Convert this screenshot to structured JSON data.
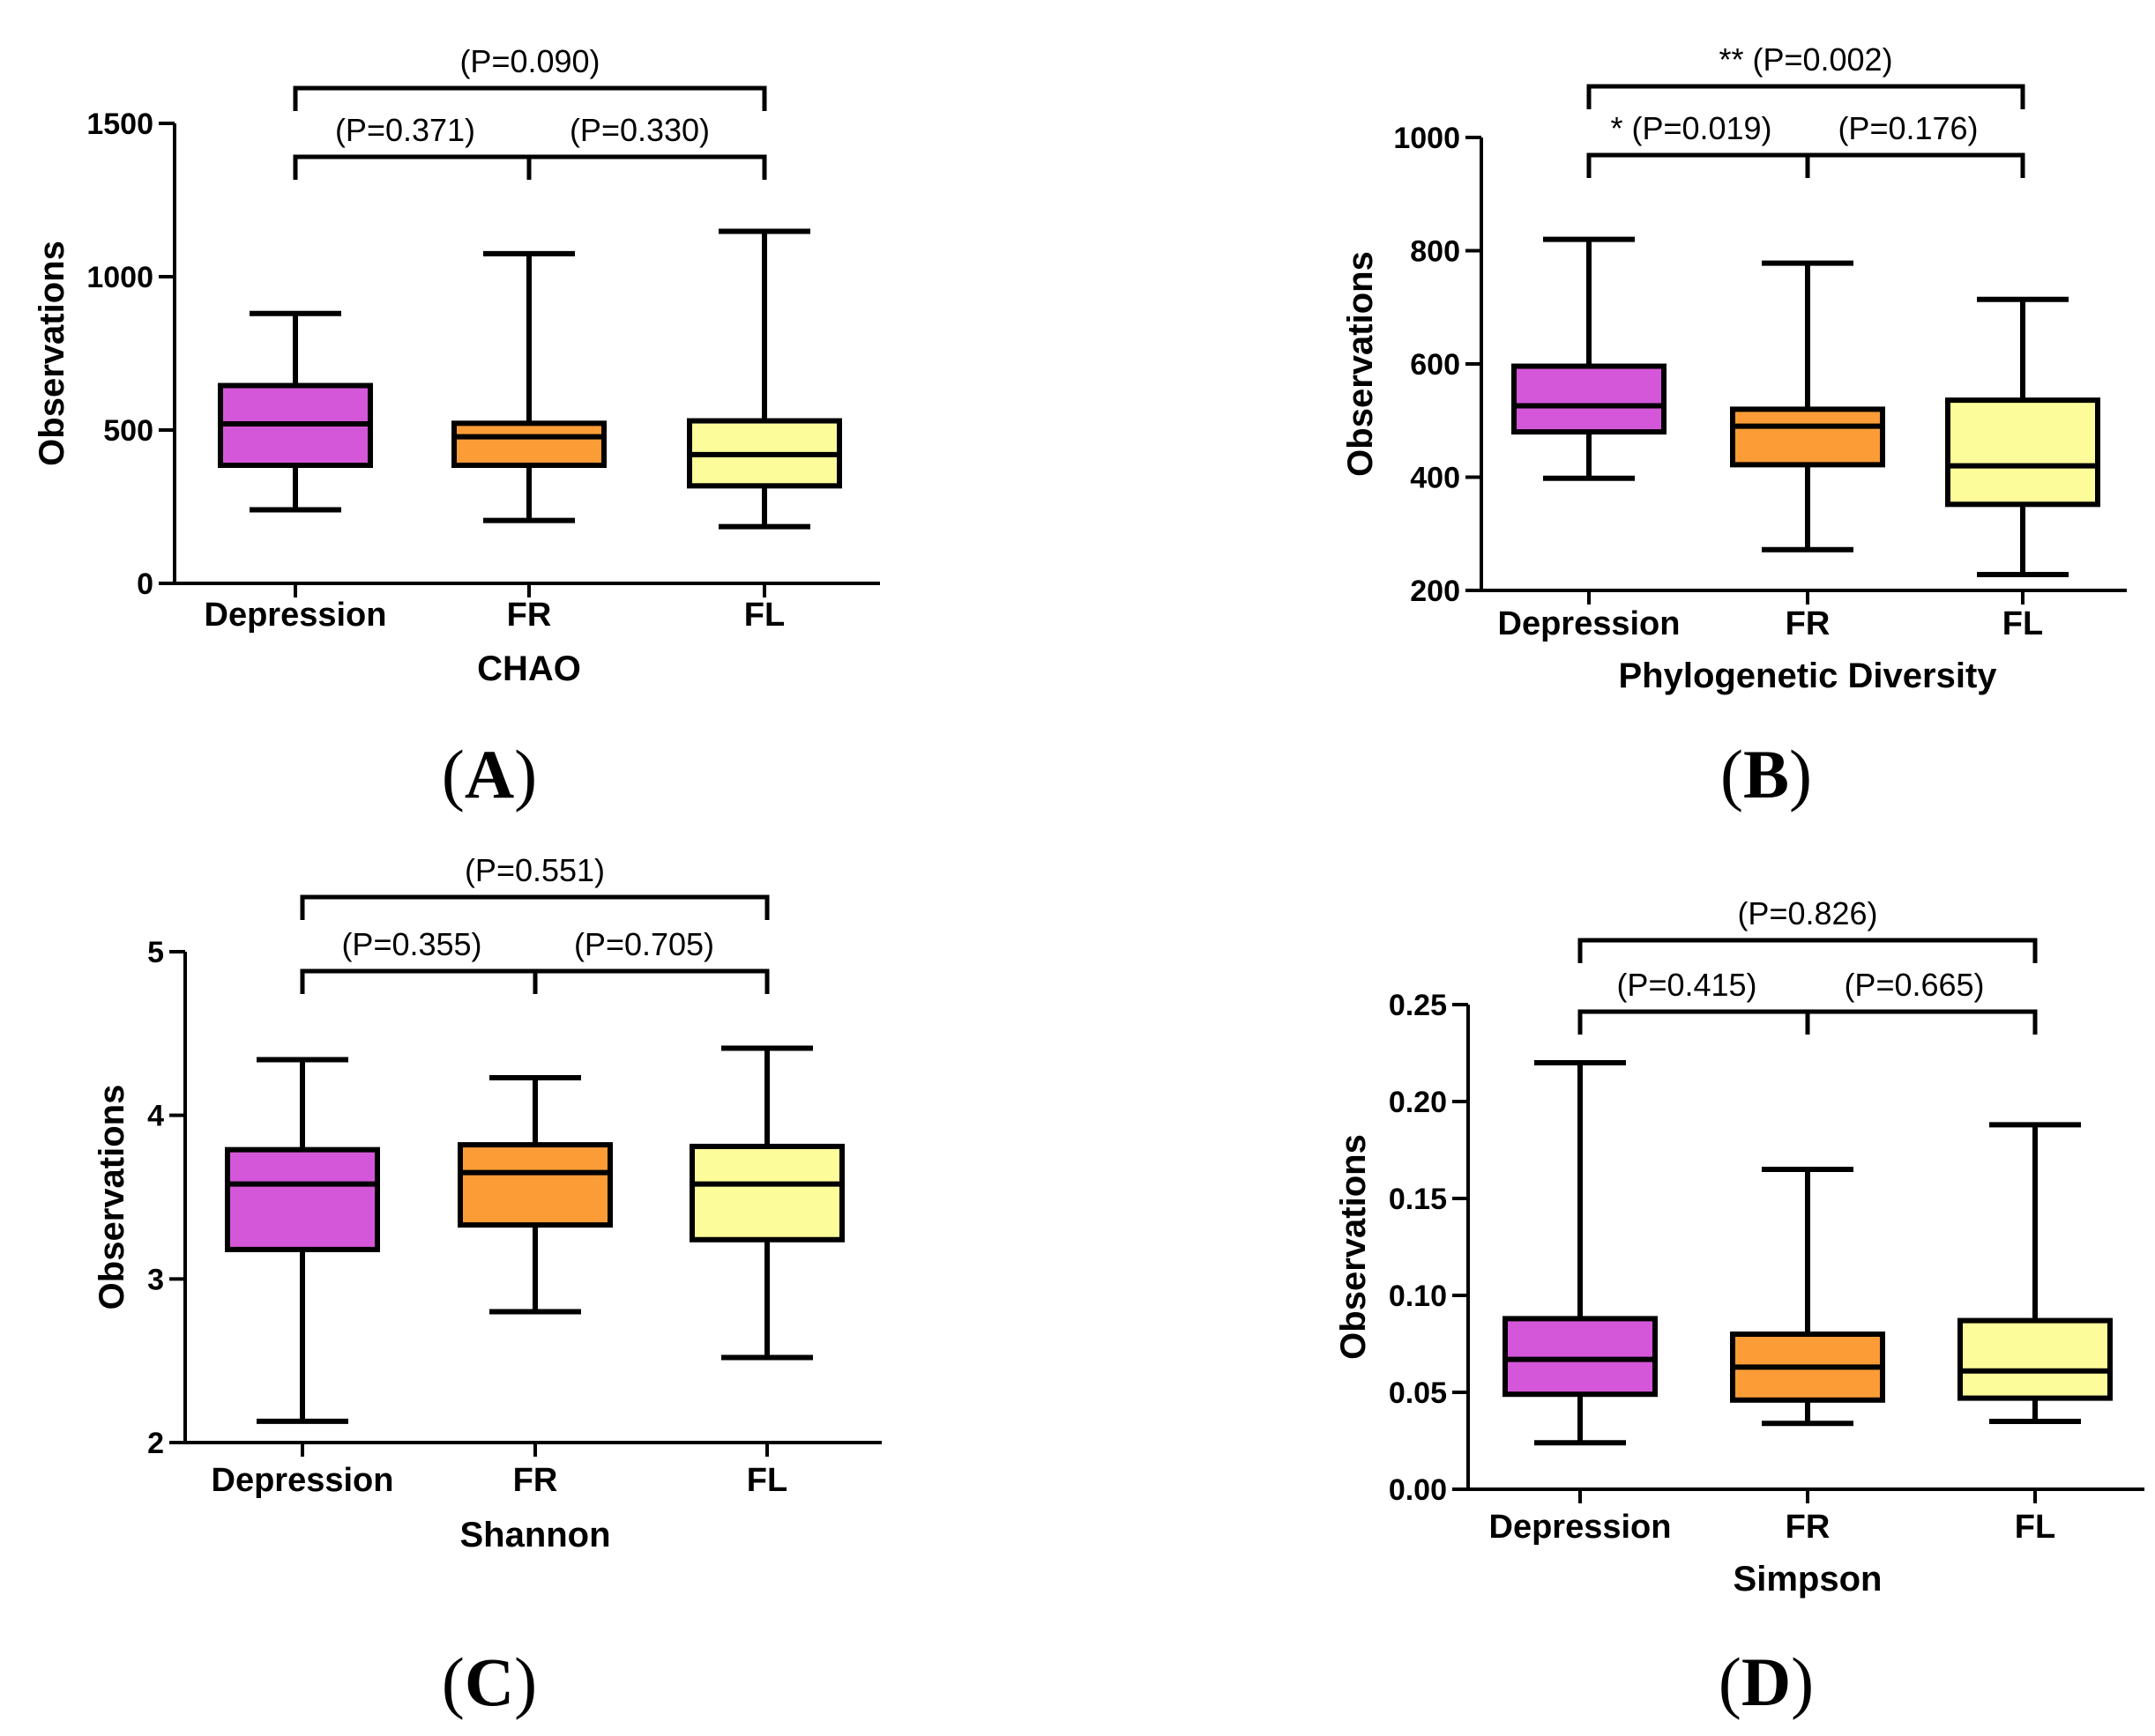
{
  "colors": {
    "Depression": "#d457d9",
    "FR": "#fb9c36",
    "FL": "#fdfc9a",
    "stroke": "#000000"
  },
  "chart_data": [
    {
      "type": "box",
      "panel": "A",
      "panel_label": [
        "(",
        "A",
        ")"
      ],
      "xlabel": "CHAO",
      "ylabel": "Observations",
      "ylim": [
        0,
        1500
      ],
      "yticks": [
        0,
        500,
        1000,
        1500
      ],
      "tick_labels": [
        "0",
        "500",
        "1000",
        "1500"
      ],
      "categories": [
        "Depression",
        "FR",
        "FL"
      ],
      "boxes": [
        {
          "min": 240,
          "q1": 385,
          "median": 520,
          "q3": 645,
          "max": 880
        },
        {
          "min": 205,
          "q1": 385,
          "median": 478,
          "q3": 522,
          "max": 1075
        },
        {
          "min": 185,
          "q1": 318,
          "median": 420,
          "q3": 530,
          "max": 1148
        }
      ],
      "comparisons": [
        {
          "from": 0,
          "to": 2,
          "label": "(P=0.090)"
        },
        {
          "from": 0,
          "to": 1,
          "label": "(P=0.371)"
        },
        {
          "from": 1,
          "to": 2,
          "label": "(P=0.330)"
        }
      ]
    },
    {
      "type": "box",
      "panel": "B",
      "panel_label": [
        "(",
        "B",
        ")"
      ],
      "xlabel": "Phylogenetic Diversity",
      "ylabel": "Observations",
      "ylim": [
        200,
        1000
      ],
      "yticks": [
        200,
        400,
        600,
        800,
        1000
      ],
      "tick_labels": [
        "200",
        "400",
        "600",
        "800",
        "1000"
      ],
      "categories": [
        "Depression",
        "FR",
        "FL"
      ],
      "boxes": [
        {
          "min": 398,
          "q1": 480,
          "median": 526,
          "q3": 596,
          "max": 820
        },
        {
          "min": 272,
          "q1": 422,
          "median": 490,
          "q3": 520,
          "max": 778
        },
        {
          "min": 228,
          "q1": 352,
          "median": 420,
          "q3": 536,
          "max": 714
        }
      ],
      "comparisons": [
        {
          "from": 0,
          "to": 2,
          "label": "** (P=0.002)"
        },
        {
          "from": 0,
          "to": 1,
          "label": "* (P=0.019)"
        },
        {
          "from": 1,
          "to": 2,
          "label": "(P=0.176)"
        }
      ]
    },
    {
      "type": "box",
      "panel": "C",
      "panel_label": [
        "(",
        "C",
        ")"
      ],
      "xlabel": "Shannon",
      "ylabel": "Observations",
      "ylim": [
        2,
        5
      ],
      "yticks": [
        2,
        3,
        4,
        5
      ],
      "tick_labels": [
        "2",
        "3",
        "4",
        "5"
      ],
      "categories": [
        "Depression",
        "FR",
        "FL"
      ],
      "boxes": [
        {
          "min": 2.13,
          "q1": 3.18,
          "median": 3.58,
          "q3": 3.79,
          "max": 4.34
        },
        {
          "min": 2.8,
          "q1": 3.33,
          "median": 3.65,
          "q3": 3.82,
          "max": 4.23
        },
        {
          "min": 2.52,
          "q1": 3.24,
          "median": 3.58,
          "q3": 3.81,
          "max": 4.41
        }
      ],
      "comparisons": [
        {
          "from": 0,
          "to": 2,
          "label": "(P=0.551)"
        },
        {
          "from": 0,
          "to": 1,
          "label": "(P=0.355)"
        },
        {
          "from": 1,
          "to": 2,
          "label": "(P=0.705)"
        }
      ]
    },
    {
      "type": "box",
      "panel": "D",
      "panel_label": [
        "(",
        "D",
        ")"
      ],
      "xlabel": "Simpson",
      "ylabel": "Observations",
      "ylim": [
        0,
        0.25
      ],
      "yticks": [
        0,
        0.05,
        0.1,
        0.15,
        0.2,
        0.25
      ],
      "tick_labels": [
        "0.00",
        "0.05",
        "0.10",
        "0.15",
        "0.20",
        "0.25"
      ],
      "categories": [
        "Depression",
        "FR",
        "FL"
      ],
      "boxes": [
        {
          "min": 0.024,
          "q1": 0.049,
          "median": 0.067,
          "q3": 0.088,
          "max": 0.22
        },
        {
          "min": 0.034,
          "q1": 0.046,
          "median": 0.063,
          "q3": 0.08,
          "max": 0.165
        },
        {
          "min": 0.035,
          "q1": 0.047,
          "median": 0.061,
          "q3": 0.087,
          "max": 0.188
        }
      ],
      "comparisons": [
        {
          "from": 0,
          "to": 2,
          "label": "(P=0.826)"
        },
        {
          "from": 0,
          "to": 1,
          "label": "(P=0.415)"
        },
        {
          "from": 1,
          "to": 2,
          "label": "(P=0.665)"
        }
      ]
    }
  ]
}
